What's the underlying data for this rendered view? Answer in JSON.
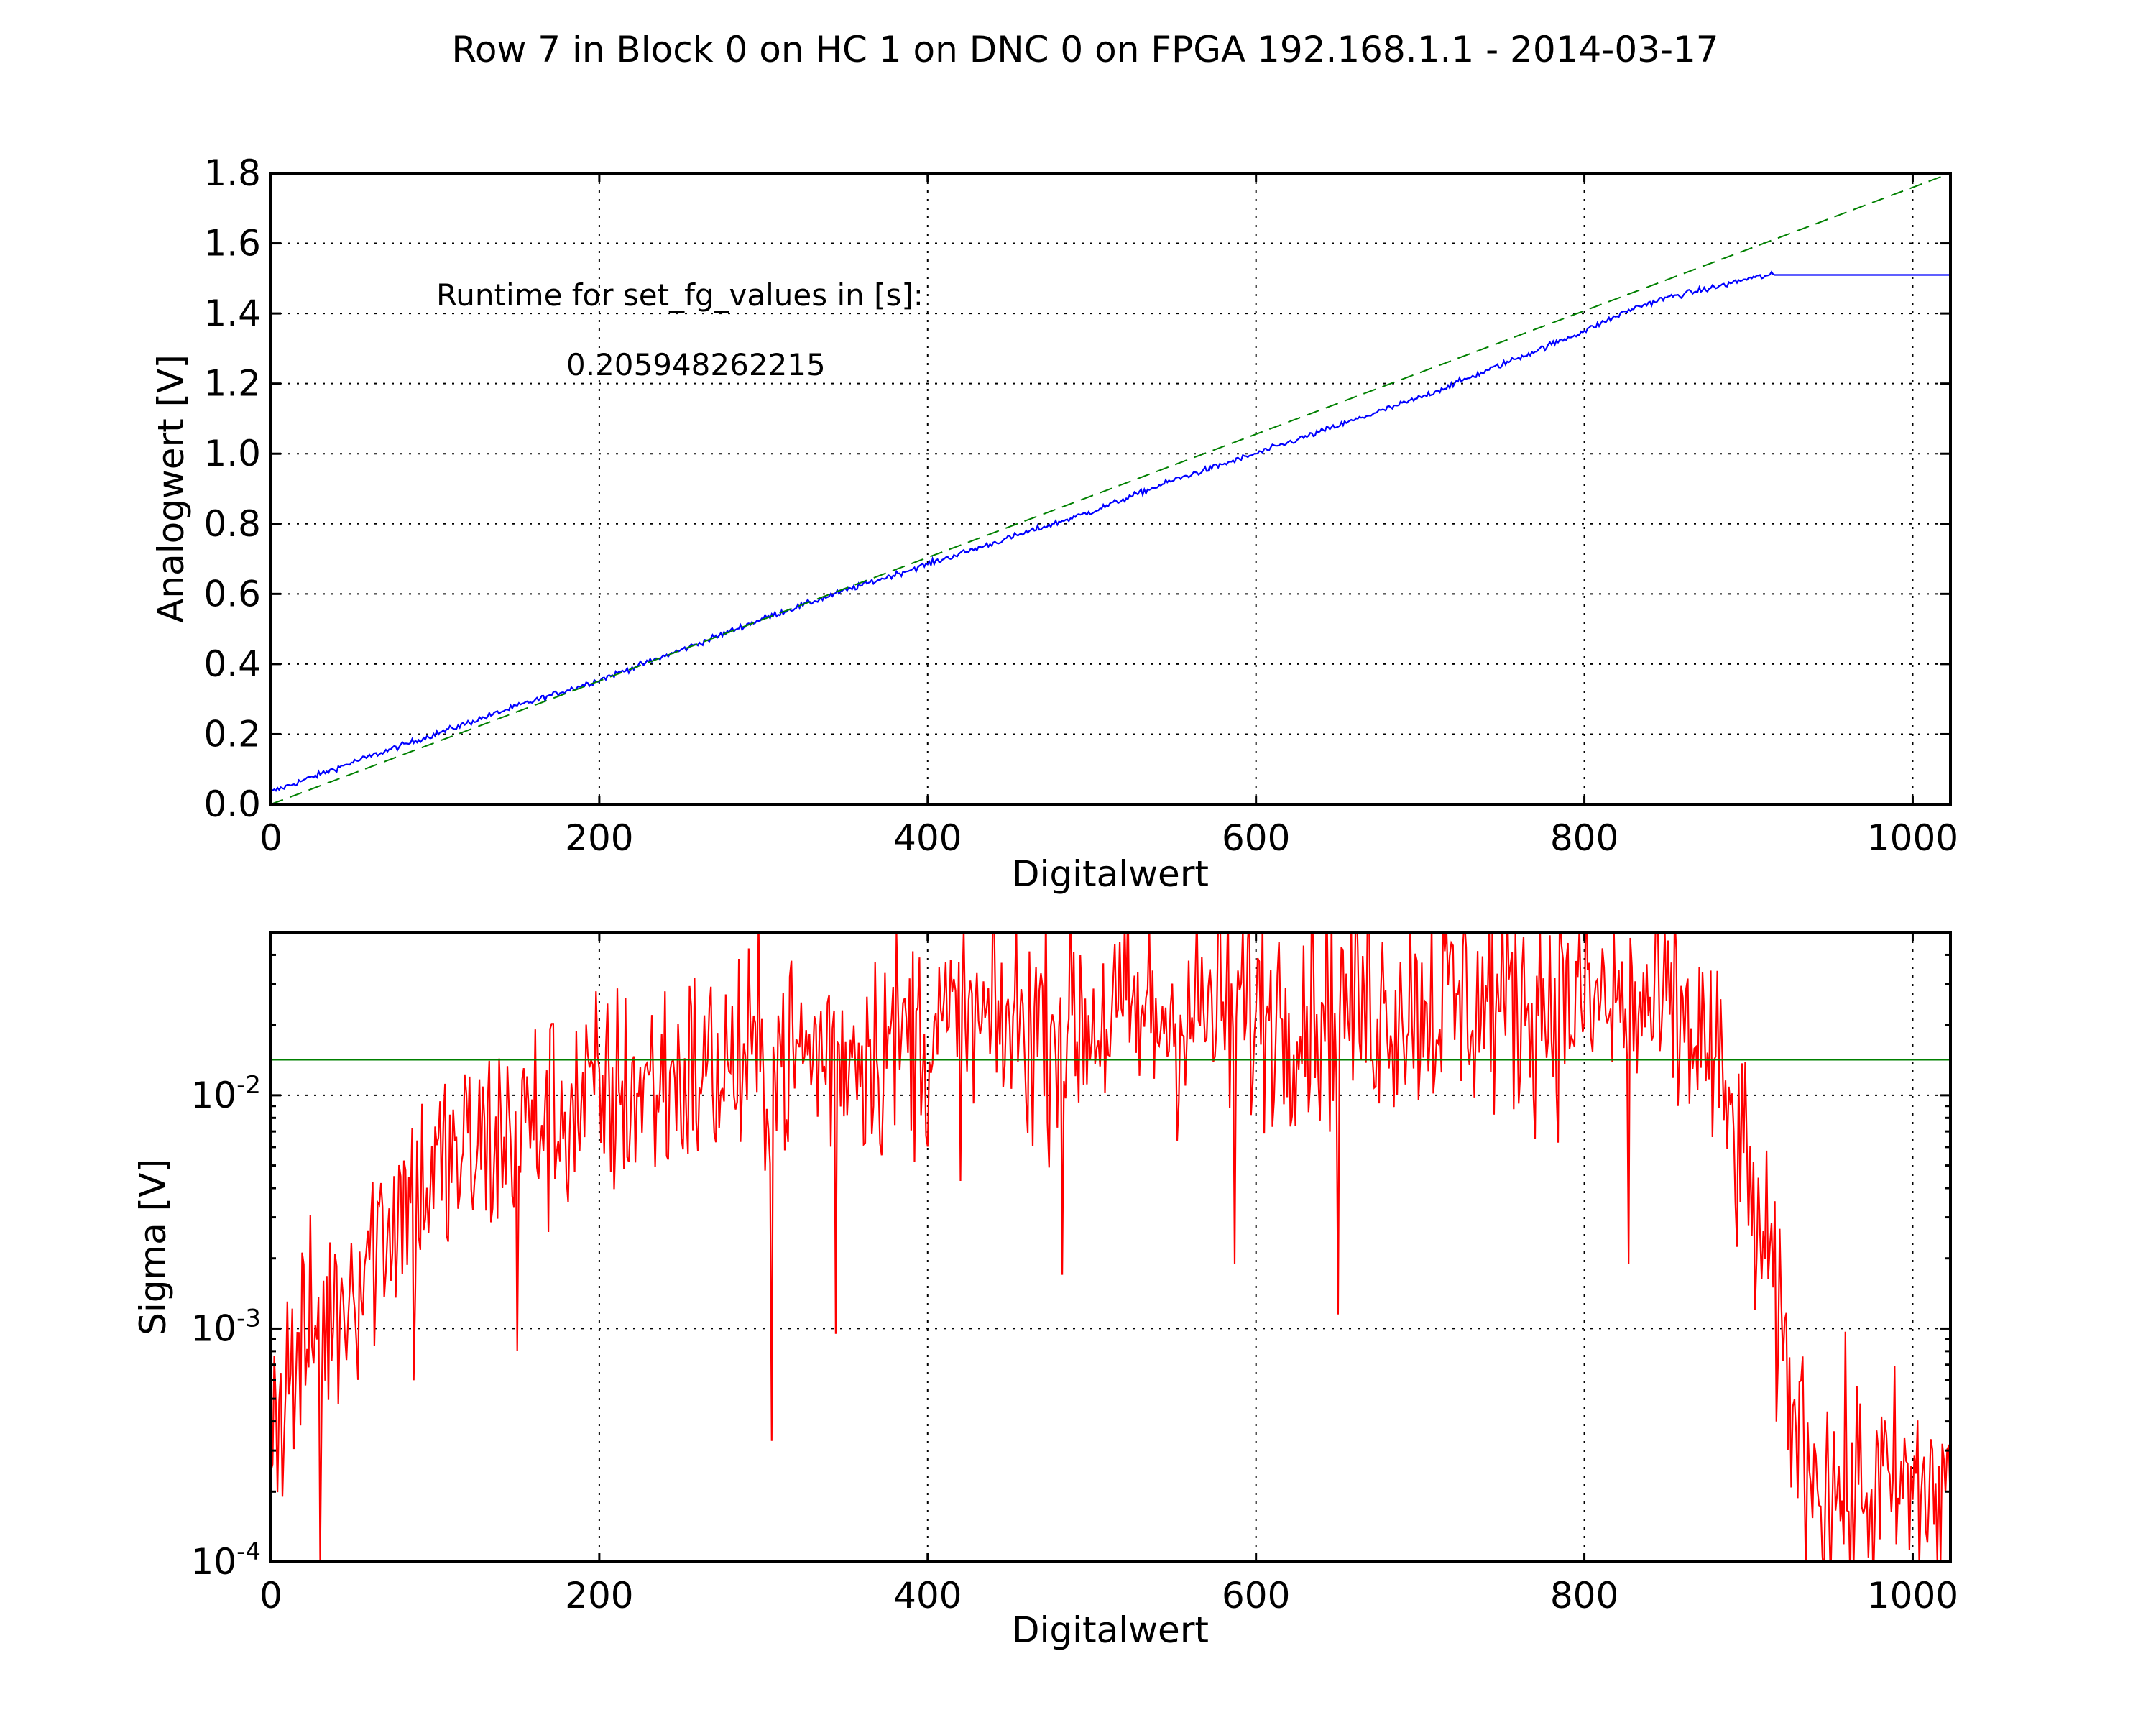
{
  "figure": {
    "suptitle": "Row 7 in Block 0 on HC 1 on DNC 0 on FPGA 192.168.1.1 - 2014-03-17"
  },
  "chart_data": [
    {
      "type": "line",
      "xlabel": "Digitalwert",
      "ylabel": "Analogwert [V]",
      "xlim": [
        0,
        1023
      ],
      "ylim": [
        0.0,
        1.8
      ],
      "xticks": [
        "0",
        "200",
        "400",
        "600",
        "800",
        "1000"
      ],
      "yticks": [
        "0.0",
        "0.2",
        "0.4",
        "0.6",
        "0.8",
        "1.0",
        "1.2",
        "1.4",
        "1.6",
        "1.8"
      ],
      "grid": true,
      "annotations": [
        "Runtime for set_fg_values in [s]:",
        "0.205948262215"
      ],
      "series": [
        {
          "color": "#0000ff",
          "style": "solid",
          "x": [
            0,
            50,
            100,
            150,
            200,
            250,
            300,
            350,
            400,
            450,
            500,
            550,
            600,
            650,
            700,
            750,
            800,
            830,
            850,
            870,
            880,
            900,
            915,
            1023
          ],
          "y": [
            0.035,
            0.12,
            0.2,
            0.28,
            0.355,
            0.44,
            0.53,
            0.61,
            0.685,
            0.76,
            0.835,
            0.925,
            1.0,
            1.08,
            1.16,
            1.255,
            1.35,
            1.415,
            1.445,
            1.465,
            1.475,
            1.5,
            1.51,
            1.51
          ],
          "noise": 0.01
        },
        {
          "color": "#008000",
          "style": "dashed",
          "x": [
            0,
            1023
          ],
          "y": [
            0.0,
            1.8
          ]
        }
      ]
    },
    {
      "type": "line",
      "xlabel": "Digitalwert",
      "ylabel": "Sigma [V]",
      "xlim": [
        0,
        1023
      ],
      "ylim": [
        0.0001,
        0.05
      ],
      "yscale": "log",
      "xticks": [
        "0",
        "200",
        "400",
        "600",
        "800",
        "1000"
      ],
      "yticks": [
        {
          "base": "10",
          "exp": "-4"
        },
        {
          "base": "10",
          "exp": "-3"
        },
        {
          "base": "10",
          "exp": "-2"
        }
      ],
      "grid": true,
      "series": [
        {
          "color": "#ff0000",
          "style": "solid",
          "x": [
            0,
            10,
            20,
            40,
            60,
            80,
            100,
            130,
            160,
            200,
            250,
            300,
            350,
            400,
            450,
            500,
            550,
            600,
            650,
            700,
            750,
            800,
            850,
            870,
            880,
            890,
            900,
            910,
            920,
            930,
            950,
            1000,
            1023
          ],
          "y": [
            0.0004,
            0.0006,
            0.0008,
            0.0012,
            0.0022,
            0.0035,
            0.0045,
            0.006,
            0.0075,
            0.0095,
            0.012,
            0.014,
            0.016,
            0.018,
            0.02,
            0.021,
            0.022,
            0.023,
            0.024,
            0.025,
            0.025,
            0.025,
            0.022,
            0.018,
            0.012,
            0.007,
            0.004,
            0.0018,
            0.0008,
            0.00035,
            0.0002,
            0.0002,
            0.0002
          ],
          "log_noise": 0.35,
          "dips": [
            {
              "x": 30,
              "y": 0.0001
            },
            {
              "x": 87,
              "y": 0.0006
            },
            {
              "x": 150,
              "y": 0.0008
            },
            {
              "x": 305,
              "y": 0.00033
            },
            {
              "x": 344,
              "y": 0.00095
            },
            {
              "x": 482,
              "y": 0.0017
            },
            {
              "x": 587,
              "y": 0.0019
            },
            {
              "x": 650,
              "y": 0.00115
            },
            {
              "x": 827,
              "y": 0.0019
            }
          ]
        },
        {
          "color": "#008000",
          "style": "solid",
          "x": [
            0,
            1023
          ],
          "y": [
            0.0142,
            0.0142
          ]
        }
      ]
    }
  ]
}
